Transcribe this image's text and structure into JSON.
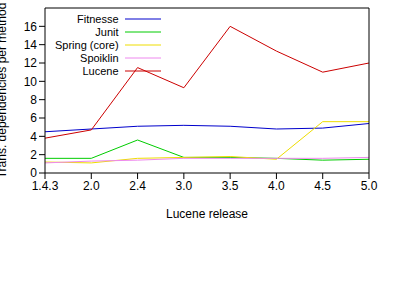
{
  "chart_data": {
    "type": "line",
    "x_label": "Lucene release",
    "y_label": "Trans. dependencies per method",
    "categories": [
      "1.4.3",
      "2.0",
      "2.4",
      "3.0",
      "3.5",
      "4.0",
      "4.5",
      "5.0"
    ],
    "series": [
      {
        "name": "Fitnesse",
        "color": "#0000cc",
        "values": [
          4.5,
          4.8,
          5.1,
          5.2,
          5.1,
          4.8,
          4.9,
          5.4
        ]
      },
      {
        "name": "Junit",
        "color": "#00cc00",
        "values": [
          1.6,
          1.6,
          3.6,
          1.7,
          1.7,
          1.6,
          1.4,
          1.5
        ]
      },
      {
        "name": "Spring (core)",
        "color": "#eedd00",
        "values": [
          1.2,
          1.1,
          1.6,
          1.7,
          1.8,
          1.5,
          5.6,
          5.6
        ]
      },
      {
        "name": "Spoiklin",
        "color": "#ee88ee",
        "values": [
          1.1,
          1.3,
          1.4,
          1.6,
          1.6,
          1.6,
          1.6,
          1.7
        ]
      },
      {
        "name": "Lucene",
        "color": "#cc0000",
        "values": [
          3.8,
          4.7,
          11.5,
          9.3,
          16.0,
          13.3,
          11.0,
          12.0
        ]
      }
    ],
    "ylim": [
      0,
      18
    ],
    "yticks": [
      0,
      2,
      4,
      6,
      8,
      10,
      12,
      14,
      16
    ],
    "grid": false,
    "legend": "upper left"
  }
}
